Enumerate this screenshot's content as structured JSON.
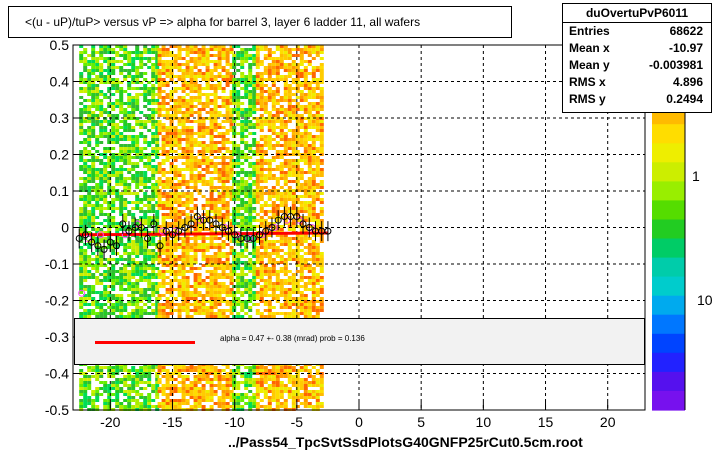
{
  "title": "<(u - uP)/tuP> versus   vP => alpha for barrel 3, layer 6 ladder 11, all wafers",
  "footer": "../Pass54_TpcSvtSsdPlotsG40GNFP25rCut0.5cm.root",
  "stats": {
    "name": "duOvertuPvP6011",
    "rows": [
      {
        "label": "Entries",
        "value": "68622"
      },
      {
        "label": "Mean x",
        "value": "-10.97"
      },
      {
        "label": "Mean y",
        "value": "-0.003981"
      },
      {
        "label": "RMS x",
        "value": "4.896"
      },
      {
        "label": "RMS y",
        "value": "0.2494"
      }
    ]
  },
  "legend": {
    "text": "alpha =     0.47 +-  0.38 (mrad) prob = 0.136",
    "color": "#ff0000"
  },
  "colorbar_labels": [
    "1",
    "10"
  ],
  "chart_data": {
    "type": "scatter",
    "xlim": [
      -23,
      23
    ],
    "ylim": [
      -0.5,
      0.5
    ],
    "x_ticks": [
      -20,
      -15,
      -10,
      -5,
      0,
      5,
      10,
      15,
      20
    ],
    "y_ticks": [
      -0.5,
      -0.4,
      -0.3,
      -0.2,
      -0.1,
      0,
      0.1,
      0.2,
      0.3,
      0.4,
      0.5
    ],
    "grid": true,
    "colz_bands": [
      {
        "x": [
          -22.5,
          -16.2
        ],
        "density": "low"
      },
      {
        "x": [
          -16.2,
          -10.2
        ],
        "density": "high"
      },
      {
        "x": [
          -10.2,
          -8.3
        ],
        "density": "low"
      },
      {
        "x": [
          -8.3,
          -3.0
        ],
        "density": "high"
      }
    ],
    "profile_points": [
      {
        "x": -22.5,
        "y": -0.03
      },
      {
        "x": -22.0,
        "y": -0.02
      },
      {
        "x": -21.5,
        "y": -0.04
      },
      {
        "x": -21.0,
        "y": -0.05
      },
      {
        "x": -20.5,
        "y": -0.06
      },
      {
        "x": -20.0,
        "y": -0.04
      },
      {
        "x": -19.5,
        "y": -0.05
      },
      {
        "x": -19.0,
        "y": 0.01
      },
      {
        "x": -18.5,
        "y": -0.01
      },
      {
        "x": -18.0,
        "y": 0.0
      },
      {
        "x": -17.5,
        "y": 0.0
      },
      {
        "x": -17.0,
        "y": -0.03
      },
      {
        "x": -16.5,
        "y": 0.01
      },
      {
        "x": -16.0,
        "y": -0.05
      },
      {
        "x": -15.5,
        "y": -0.01
      },
      {
        "x": -15.0,
        "y": -0.02
      },
      {
        "x": -14.5,
        "y": -0.01
      },
      {
        "x": -14.0,
        "y": 0.0
      },
      {
        "x": -13.5,
        "y": 0.01
      },
      {
        "x": -13.0,
        "y": 0.03
      },
      {
        "x": -12.5,
        "y": 0.02
      },
      {
        "x": -12.0,
        "y": 0.02
      },
      {
        "x": -11.5,
        "y": 0.01
      },
      {
        "x": -11.0,
        "y": 0.0
      },
      {
        "x": -10.5,
        "y": -0.01
      },
      {
        "x": -10.0,
        "y": -0.02
      },
      {
        "x": -9.5,
        "y": -0.03
      },
      {
        "x": -9.0,
        "y": -0.03
      },
      {
        "x": -8.5,
        "y": -0.03
      },
      {
        "x": -8.0,
        "y": -0.02
      },
      {
        "x": -7.5,
        "y": -0.01
      },
      {
        "x": -7.0,
        "y": 0.0
      },
      {
        "x": -6.5,
        "y": 0.02
      },
      {
        "x": -6.0,
        "y": 0.03
      },
      {
        "x": -5.5,
        "y": 0.03
      },
      {
        "x": -5.0,
        "y": 0.03
      },
      {
        "x": -4.5,
        "y": 0.01
      },
      {
        "x": -4.0,
        "y": 0.0
      },
      {
        "x": -3.5,
        "y": -0.01
      },
      {
        "x": -3.0,
        "y": -0.01
      },
      {
        "x": -2.5,
        "y": -0.01
      }
    ],
    "pink_points": [
      {
        "x": -22.3,
        "y": -0.18
      },
      {
        "x": -21.8,
        "y": -0.03
      },
      {
        "x": -20.8,
        "y": -0.02
      },
      {
        "x": -18.8,
        "y": -0.02
      },
      {
        "x": -17.8,
        "y": 0.01
      },
      {
        "x": -15.8,
        "y": -0.01
      },
      {
        "x": -14.8,
        "y": -0.01
      },
      {
        "x": -12.8,
        "y": 0.02
      },
      {
        "x": -10.8,
        "y": 0.0
      },
      {
        "x": -9.8,
        "y": -0.02
      },
      {
        "x": -8.8,
        "y": -0.03
      },
      {
        "x": -7.8,
        "y": -0.02
      },
      {
        "x": -6.8,
        "y": 0.0
      },
      {
        "x": -5.8,
        "y": 0.02
      },
      {
        "x": -4.8,
        "y": 0.02
      },
      {
        "x": -3.8,
        "y": 0.0
      }
    ],
    "fit_line": {
      "x": [
        -22.5,
        -2.5
      ],
      "y": [
        -0.02,
        -0.015
      ],
      "color": "#ff0000"
    }
  }
}
